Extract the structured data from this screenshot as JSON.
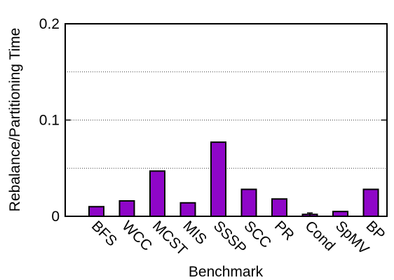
{
  "chart_data": {
    "type": "bar",
    "title": "",
    "xlabel": "Benchmark",
    "ylabel": "Rebalance/Partitioning Time",
    "categories": [
      "BFS",
      "WCC",
      "MCST",
      "MIS",
      "SSSP",
      "SCC",
      "PR",
      "Cond",
      "SpMV",
      "BP"
    ],
    "values": [
      0.01,
      0.016,
      0.047,
      0.014,
      0.077,
      0.028,
      0.018,
      0.002,
      0.005,
      0.028
    ],
    "ylim": [
      0,
      0.2
    ],
    "yticks": [
      0,
      0.1,
      0.2
    ],
    "ytick_labels": [
      "0",
      "0.1",
      "0.2"
    ],
    "grid": {
      "horizontal": true,
      "style": "dotted",
      "values": [
        0.05,
        0.1,
        0.15
      ]
    },
    "error_bars": {
      "Cond": 0.0015
    },
    "bar_color": "#8f06c8",
    "bar_edge_color": "#000000"
  }
}
